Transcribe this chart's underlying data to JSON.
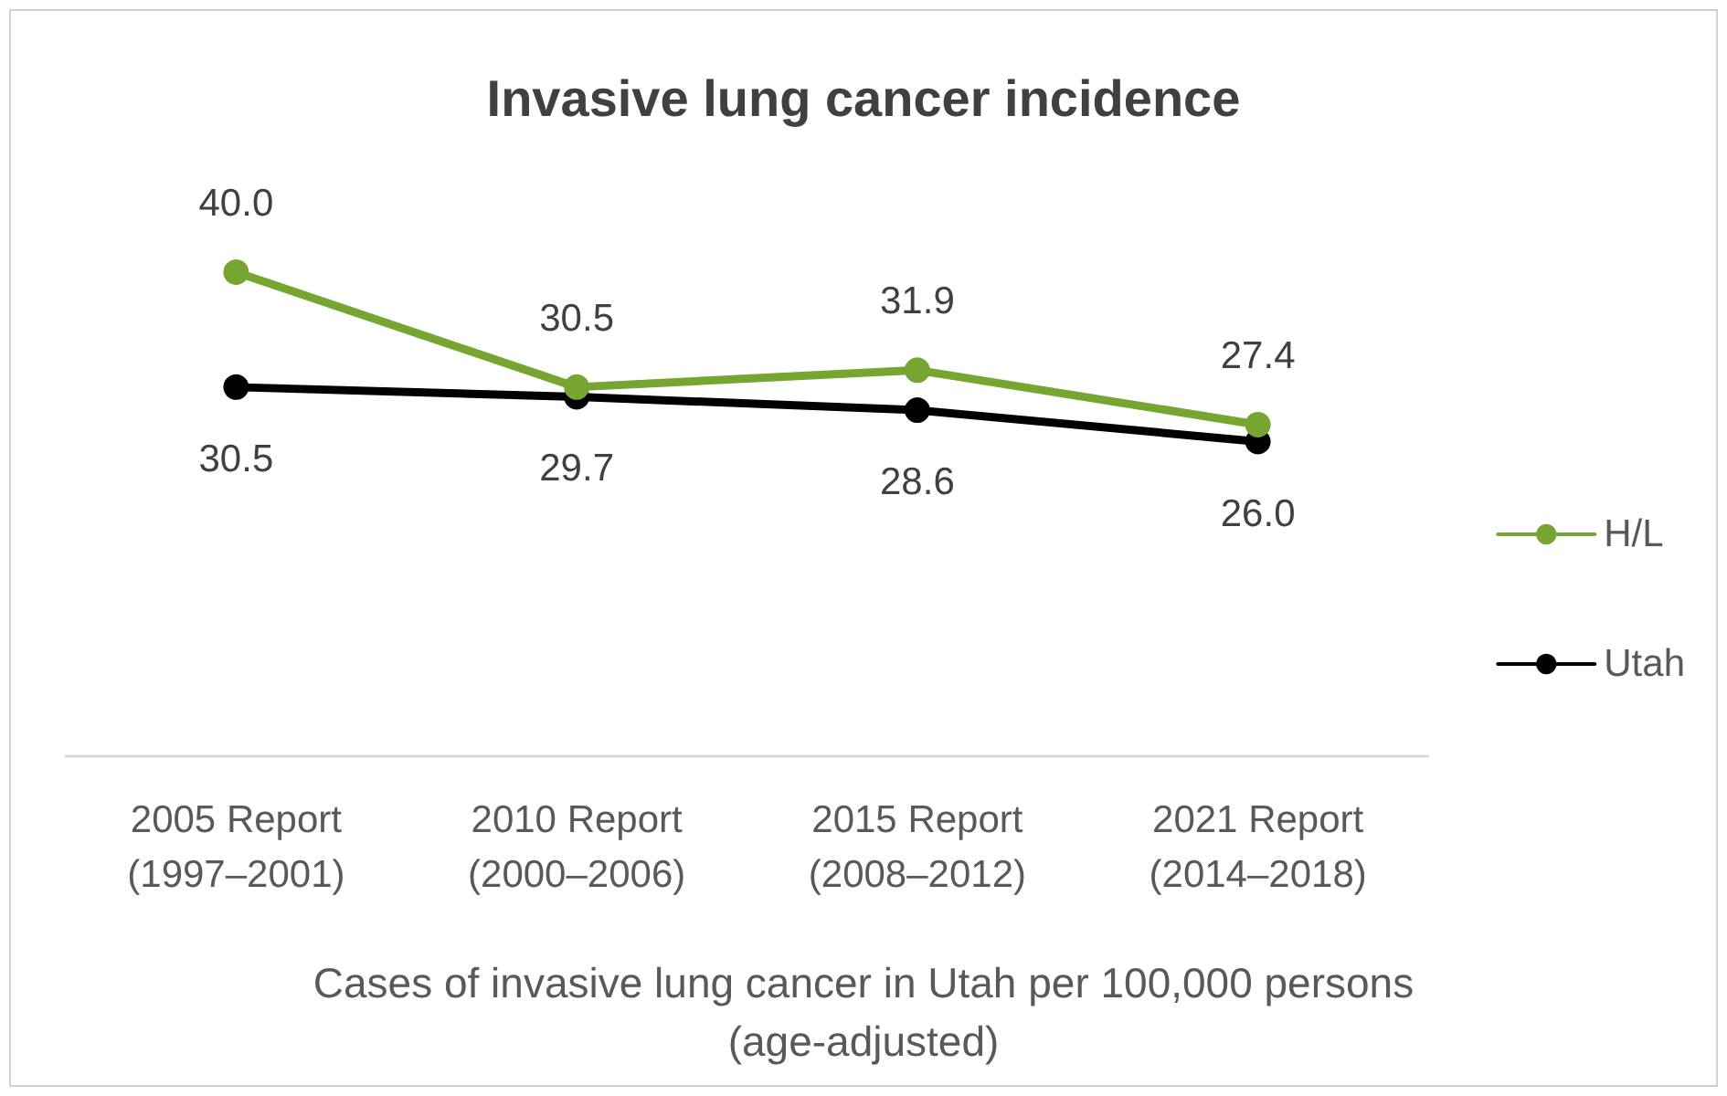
{
  "chart_data": {
    "type": "line",
    "title": "Invasive lung cancer incidence",
    "xlabel": "Cases of invasive lung cancer in Utah per 100,000 persons\n(age-adjusted)",
    "categories": [
      "2005 Report\n(1997–2001)",
      "2010 Report\n(2000–2006)",
      "2015 Report\n(2008–2012)",
      "2021 Report\n(2014–2018)"
    ],
    "series": [
      {
        "name": "H/L",
        "color": "#76a532",
        "values": [
          40.0,
          30.5,
          31.9,
          27.4
        ],
        "value_labels": [
          "40.0",
          "30.5",
          "31.9",
          "27.4"
        ]
      },
      {
        "name": "Utah",
        "color": "#000000",
        "values": [
          30.5,
          29.7,
          28.6,
          26.0
        ],
        "value_labels": [
          "30.5",
          "29.7",
          "28.6",
          "26.0"
        ]
      }
    ],
    "tick_labels": "x",
    "legend": "right",
    "marker": "circle"
  }
}
